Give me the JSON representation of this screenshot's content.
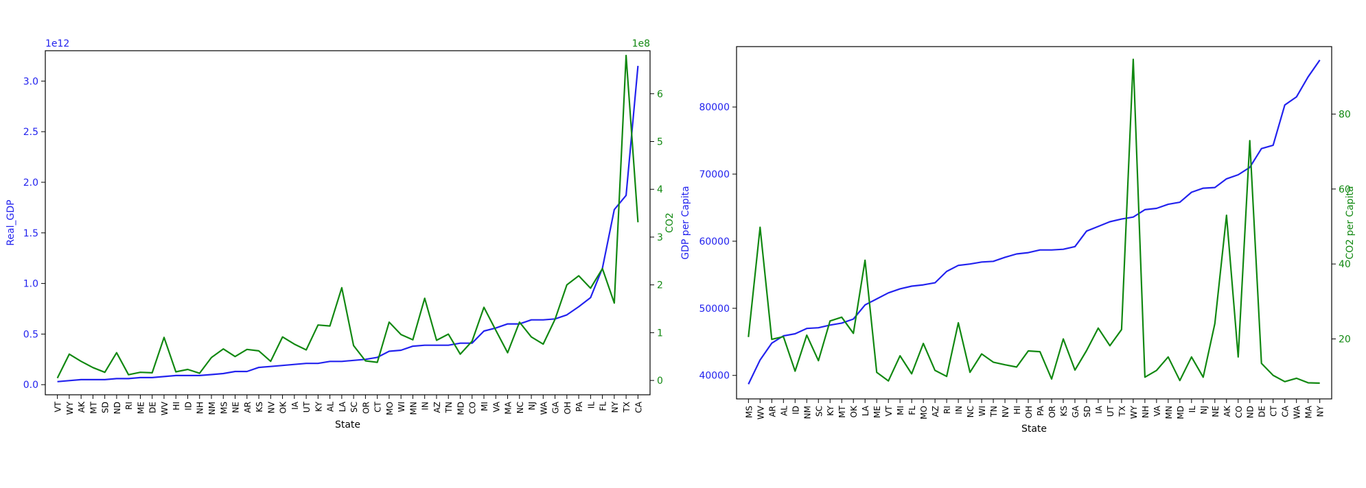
{
  "chart_data": [
    {
      "type": "line",
      "xlabel": "State",
      "y_left_label": "Real_GDP",
      "y_right_label": "CO2",
      "y_left_offset_text": "1e12",
      "y_right_offset_text": "1e8",
      "y_left_lim": [
        -0.1,
        3.3
      ],
      "y_right_lim": [
        -0.3,
        6.9
      ],
      "y_left_ticks": [
        0.0,
        0.5,
        1.0,
        1.5,
        2.0,
        2.5,
        3.0
      ],
      "y_left_tick_labels": [
        "0.0",
        "0.5",
        "1.0",
        "1.5",
        "2.0",
        "2.5",
        "3.0"
      ],
      "y_right_ticks": [
        0,
        1,
        2,
        3,
        4,
        5,
        6
      ],
      "y_right_tick_labels": [
        "0",
        "1",
        "2",
        "3",
        "4",
        "5",
        "6"
      ],
      "left_color": "#2222ee",
      "right_color": "#118811",
      "categories": [
        "VT",
        "WY",
        "AK",
        "MT",
        "SD",
        "ND",
        "RI",
        "ME",
        "DE",
        "WV",
        "HI",
        "ID",
        "NH",
        "NM",
        "MS",
        "NE",
        "AR",
        "KS",
        "NV",
        "OK",
        "IA",
        "UT",
        "KY",
        "AL",
        "LA",
        "SC",
        "OR",
        "CT",
        "MO",
        "WI",
        "MN",
        "IN",
        "AZ",
        "TN",
        "MD",
        "CO",
        "MI",
        "VA",
        "MA",
        "NC",
        "NJ",
        "WA",
        "GA",
        "OH",
        "PA",
        "IL",
        "FL",
        "NY",
        "TX",
        "CA"
      ],
      "series": [
        {
          "axis": "left",
          "values": [
            0.03,
            0.04,
            0.05,
            0.05,
            0.05,
            0.06,
            0.06,
            0.07,
            0.07,
            0.08,
            0.09,
            0.09,
            0.09,
            0.1,
            0.11,
            0.13,
            0.13,
            0.17,
            0.18,
            0.19,
            0.2,
            0.21,
            0.21,
            0.23,
            0.23,
            0.24,
            0.25,
            0.27,
            0.33,
            0.34,
            0.38,
            0.39,
            0.39,
            0.39,
            0.41,
            0.41,
            0.53,
            0.56,
            0.6,
            0.6,
            0.64,
            0.64,
            0.65,
            0.69,
            0.77,
            0.86,
            1.15,
            1.73,
            1.87,
            3.15
          ]
        },
        {
          "axis": "right",
          "values": [
            0.05,
            0.55,
            0.4,
            0.27,
            0.17,
            0.58,
            0.12,
            0.17,
            0.16,
            0.9,
            0.18,
            0.23,
            0.15,
            0.48,
            0.66,
            0.5,
            0.65,
            0.62,
            0.4,
            0.91,
            0.76,
            0.64,
            1.16,
            1.14,
            1.94,
            0.73,
            0.41,
            0.38,
            1.22,
            0.96,
            0.85,
            1.72,
            0.84,
            0.97,
            0.55,
            0.82,
            1.53,
            1.05,
            0.58,
            1.22,
            0.91,
            0.76,
            1.28,
            2.0,
            2.19,
            1.93,
            2.34,
            1.62,
            6.8,
            3.31
          ]
        }
      ]
    },
    {
      "type": "line",
      "xlabel": "State",
      "y_left_label": "GDP per Capita",
      "y_right_label": "CO2 per Capita",
      "y_left_lim": [
        36500,
        89000
      ],
      "y_right_lim": [
        4,
        98
      ],
      "y_left_ticks": [
        40000,
        50000,
        60000,
        70000,
        80000
      ],
      "y_left_tick_labels": [
        "40000",
        "50000",
        "60000",
        "70000",
        "80000"
      ],
      "y_right_ticks": [
        20,
        40,
        60,
        80
      ],
      "y_right_tick_labels": [
        "20",
        "40",
        "60",
        "80"
      ],
      "left_color": "#2222ee",
      "right_color": "#118811",
      "categories": [
        "MS",
        "WV",
        "AR",
        "AL",
        "ID",
        "NM",
        "SC",
        "KY",
        "MT",
        "OK",
        "LA",
        "ME",
        "VT",
        "MI",
        "FL",
        "MO",
        "AZ",
        "RI",
        "IN",
        "NC",
        "WI",
        "TN",
        "NV",
        "HI",
        "OH",
        "PA",
        "OR",
        "KS",
        "GA",
        "SD",
        "IA",
        "UT",
        "TX",
        "WY",
        "NH",
        "VA",
        "MN",
        "MD",
        "IL",
        "NJ",
        "NE",
        "AK",
        "CO",
        "ND",
        "DE",
        "CT",
        "CA",
        "WA",
        "MA",
        "NY"
      ],
      "series": [
        {
          "axis": "left",
          "values": [
            38700,
            42300,
            44800,
            45900,
            46200,
            47000,
            47100,
            47500,
            47800,
            48400,
            50500,
            51400,
            52300,
            52900,
            53300,
            53500,
            53800,
            55500,
            56400,
            56600,
            56900,
            57000,
            57600,
            58100,
            58300,
            58700,
            58700,
            58800,
            59200,
            61500,
            62200,
            62900,
            63300,
            63600,
            64700,
            64900,
            65500,
            65800,
            67300,
            67900,
            68000,
            69300,
            69900,
            71000,
            73800,
            74300,
            80300,
            81500,
            84500,
            87000
          ]
        },
        {
          "axis": "right",
          "values": [
            20.5,
            49.8,
            19.9,
            20.6,
            11.4,
            21.0,
            14.2,
            24.8,
            25.8,
            21.5,
            41.0,
            11.1,
            8.8,
            15.5,
            10.7,
            18.8,
            11.6,
            10.0,
            24.3,
            11.1,
            16.0,
            13.8,
            13.1,
            12.5,
            16.8,
            16.6,
            9.3,
            20.0,
            11.7,
            16.9,
            22.9,
            18.2,
            22.5,
            94.6,
            9.8,
            11.6,
            15.2,
            8.9,
            15.2,
            9.8,
            24.1,
            53.0,
            15.2,
            72.9,
            13.5,
            10.3,
            8.6,
            9.5,
            8.3,
            8.2
          ]
        }
      ]
    }
  ]
}
